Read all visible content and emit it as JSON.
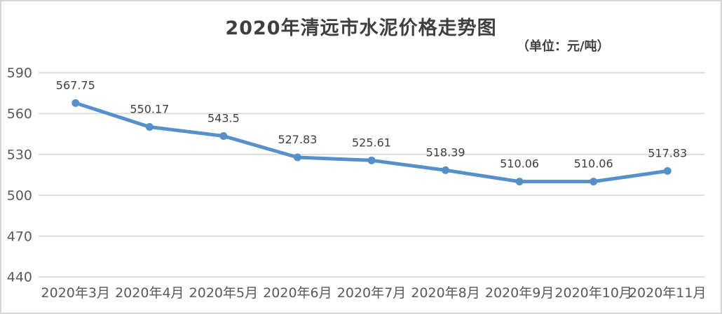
{
  "chart_data": {
    "type": "line",
    "title": "2020年清远市水泥价格走势图",
    "unit_label": "（单位：元/吨）",
    "categories": [
      "2020年3月",
      "2020年4月",
      "2020年5月",
      "2020年6月",
      "2020年7月",
      "2020年8月",
      "2020年9月",
      "2020年10月",
      "2020年11月"
    ],
    "values": [
      567.75,
      550.17,
      543.5,
      527.83,
      525.61,
      518.39,
      510.06,
      510.06,
      517.83
    ],
    "data_labels": [
      "567.75",
      "550.17",
      "543.5",
      "527.83",
      "525.61",
      "518.39",
      "510.06",
      "510.06",
      "517.83"
    ],
    "ylim": [
      440,
      590
    ],
    "yticks": [
      440,
      470,
      500,
      530,
      560,
      590
    ],
    "xlabel": "",
    "ylabel": "",
    "grid": true,
    "legend": "none",
    "colors": {
      "line": "#5590ca",
      "marker": "#5590ca",
      "gridline": "#d9d9d9",
      "axis_text": "#595959",
      "data_label_text": "#404040",
      "title_text": "#3f3f3f",
      "background": "#ffffff",
      "frame_border": "#d6d6d6"
    }
  }
}
